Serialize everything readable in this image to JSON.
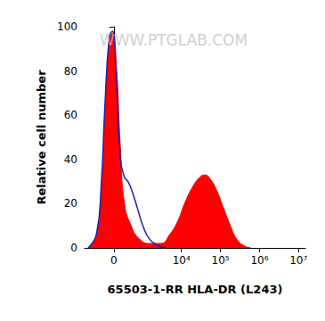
{
  "chart_data": {
    "type": "line",
    "x_label": "65503-1-RR HLA-DR (L243)",
    "y_label": "Relative cell number",
    "annotations": [
      "WWW.PTGLAB.COM"
    ],
    "xlim": [
      -1000,
      15000000
    ],
    "xticks": [
      0,
      {
        "value": 10000,
        "label": "10⁴"
      },
      {
        "value": 100000,
        "label": "10⁵"
      },
      {
        "value": 1000000,
        "label": "10⁶"
      },
      {
        "value": 10000000,
        "label": "10⁷"
      }
    ],
    "ylim": [
      0,
      100
    ],
    "yticks": [
      0,
      20,
      40,
      60,
      80,
      100
    ],
    "grid": false,
    "series": [
      {
        "type": "area",
        "color": "#ff0000",
        "x": [
          -800,
          -450,
          -300,
          -200,
          -100,
          -30,
          50,
          150,
          250,
          450,
          800,
          1500,
          3000,
          5000,
          8000,
          12000,
          20000,
          30000,
          40000,
          55000,
          80000,
          120000,
          180000,
          260000,
          400000,
          600000
        ],
        "values": [
          0,
          5,
          25,
          60,
          92,
          97,
          85,
          45,
          20,
          10,
          4,
          2,
          2,
          6,
          12,
          20,
          28,
          32,
          33,
          31,
          26,
          18,
          10,
          4,
          1,
          0
        ]
      },
      {
        "type": "line",
        "color": "#1f1fa8",
        "x": [
          -800,
          -450,
          -300,
          -200,
          -100,
          -30,
          50,
          150,
          250,
          350,
          500,
          700,
          1000,
          1500,
          2500,
          4000
        ],
        "values": [
          0,
          6,
          28,
          65,
          95,
          98,
          80,
          40,
          32,
          30,
          25,
          18,
          10,
          4,
          1,
          0
        ]
      }
    ]
  }
}
